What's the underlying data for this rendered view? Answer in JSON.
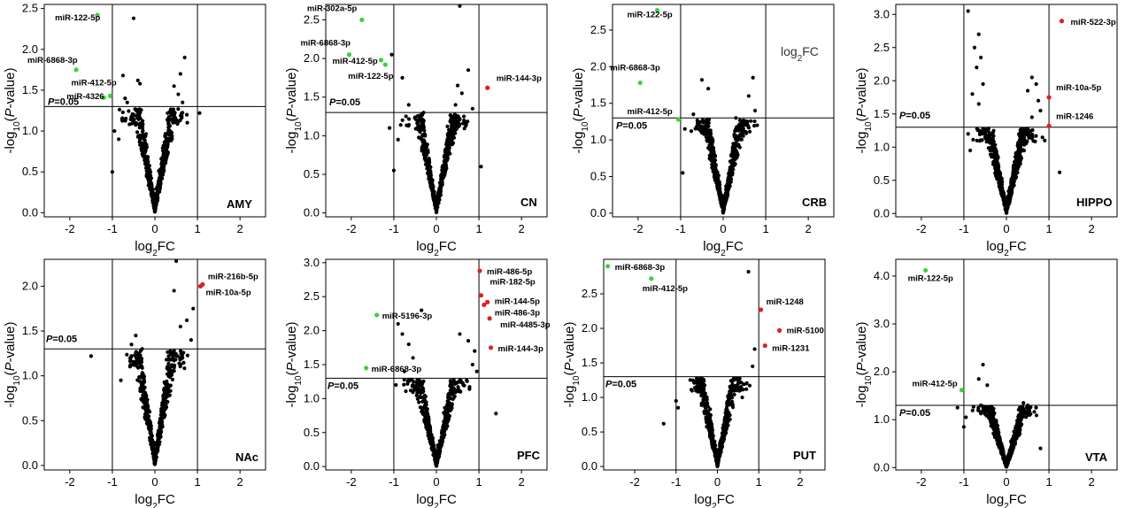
{
  "chart_data": [
    {
      "type": "scatter",
      "region": "AMY",
      "xlabel": "log2FC",
      "ylabel": "-log10(P-value)",
      "threshold_label": "P=0.05",
      "xlim": [
        -2.6,
        2.6
      ],
      "ylim": [
        -0.05,
        2.55
      ],
      "xticks": [
        "-2",
        "-1",
        "0",
        "1",
        "2"
      ],
      "xtick_values": [
        -2,
        -1,
        0,
        1,
        2
      ],
      "yticks": [
        "0.0",
        "0.5",
        "1.0",
        "1.5",
        "2.0",
        "2.5"
      ],
      "ytick_values": [
        0,
        0.5,
        1,
        1.5,
        2,
        2.5
      ],
      "fc_cutoffs": [
        -1,
        1
      ],
      "p_cutoff": 1.3,
      "labeled": [
        {
          "name": "miR-122-5p",
          "x": -1.35,
          "y": 2.42,
          "color": "#3dd13d"
        },
        {
          "name": "miR-6868-3p",
          "x": -1.85,
          "y": 1.75,
          "color": "#3dd13d"
        },
        {
          "name": "miR-412-5p",
          "x": -1.05,
          "y": 1.43,
          "color": "#3dd13d"
        },
        {
          "name": "miR-4326",
          "x": -1.2,
          "y": 1.41,
          "color": "#3dd13d"
        }
      ],
      "outliers": [
        [
          -0.5,
          2.38
        ],
        [
          -0.75,
          1.68
        ],
        [
          -0.4,
          1.62
        ],
        [
          -0.35,
          1.58
        ],
        [
          -0.7,
          1.4
        ],
        [
          -0.65,
          1.35
        ],
        [
          0.45,
          1.55
        ],
        [
          0.6,
          1.7
        ],
        [
          0.7,
          1.9
        ],
        [
          0.55,
          1.45
        ],
        [
          0.65,
          1.35
        ],
        [
          1.05,
          1.22
        ],
        [
          -0.95,
          1.0
        ],
        [
          -1.0,
          0.5
        ],
        [
          -0.85,
          0.9
        ],
        [
          0.75,
          1.2
        ]
      ]
    },
    {
      "type": "scatter",
      "region": "CN",
      "xlabel": "log2FC",
      "ylabel": "-log10(P-value)",
      "threshold_label": "P=0.05",
      "xlim": [
        -2.6,
        2.6
      ],
      "ylim": [
        -0.05,
        2.7
      ],
      "xticks": [
        "-2",
        "-1",
        "0",
        "1",
        "2"
      ],
      "xtick_values": [
        -2,
        -1,
        0,
        1,
        2
      ],
      "yticks": [
        "0.0",
        "0.5",
        "1.0",
        "1.5",
        "2.0",
        "2.5"
      ],
      "ytick_values": [
        0,
        0.5,
        1,
        1.5,
        2,
        2.5
      ],
      "fc_cutoffs": [
        -1,
        1
      ],
      "p_cutoff": 1.3,
      "labeled": [
        {
          "name": "miR-302a-5p",
          "x": -1.75,
          "y": 2.5,
          "color": "#3dd13d"
        },
        {
          "name": "miR-6868-3p",
          "x": -2.05,
          "y": 2.05,
          "color": "#3dd13d"
        },
        {
          "name": "miR-412-5p",
          "x": -1.3,
          "y": 1.98,
          "color": "#3dd13d"
        },
        {
          "name": "miR-122-5p",
          "x": -1.2,
          "y": 1.92,
          "color": "#3dd13d"
        },
        {
          "name": "miR-144-3p",
          "x": 1.2,
          "y": 1.62,
          "color": "#e02020"
        }
      ],
      "outliers": [
        [
          0.55,
          2.68
        ],
        [
          -1.05,
          2.05
        ],
        [
          -0.8,
          1.75
        ],
        [
          -0.65,
          1.4
        ],
        [
          0.5,
          1.65
        ],
        [
          0.6,
          1.55
        ],
        [
          0.45,
          1.4
        ],
        [
          0.75,
          1.85
        ],
        [
          0.85,
          1.35
        ],
        [
          -1.0,
          0.55
        ],
        [
          -1.1,
          1.1
        ],
        [
          -0.9,
          0.95
        ],
        [
          -0.3,
          1.3
        ],
        [
          0.4,
          1.2
        ],
        [
          1.05,
          0.6
        ]
      ]
    },
    {
      "type": "scatter",
      "region": "CRB",
      "xlabel": "log2FC",
      "ylabel": "-log10(P-value)",
      "threshold_label": "P=0.05",
      "annotation": "log2FC",
      "xlim": [
        -2.6,
        2.6
      ],
      "ylim": [
        -0.05,
        2.85
      ],
      "xticks": [
        "-2",
        "-1",
        "0",
        "1",
        "2"
      ],
      "xtick_values": [
        -2,
        -1,
        0,
        1,
        2
      ],
      "yticks": [
        "0.0",
        "0.5",
        "1.0",
        "1.5",
        "2.0",
        "2.5"
      ],
      "ytick_values": [
        0,
        0.5,
        1,
        1.5,
        2,
        2.5
      ],
      "fc_cutoffs": [
        -1,
        1
      ],
      "p_cutoff": 1.3,
      "labeled": [
        {
          "name": "miR-122-5p",
          "x": -1.55,
          "y": 2.77,
          "color": "#3dd13d"
        },
        {
          "name": "miR-6868-3p",
          "x": -1.95,
          "y": 1.78,
          "color": "#3dd13d"
        },
        {
          "name": "miR-412-5p",
          "x": -1.05,
          "y": 1.28,
          "color": "#3dd13d"
        }
      ],
      "outliers": [
        [
          -0.5,
          1.82
        ],
        [
          -0.35,
          1.7
        ],
        [
          0.7,
          1.85
        ],
        [
          0.6,
          1.6
        ],
        [
          0.75,
          1.4
        ],
        [
          -0.7,
          1.35
        ],
        [
          -0.6,
          1.25
        ],
        [
          0.3,
          1.3
        ],
        [
          -0.9,
          1.15
        ],
        [
          -0.95,
          0.55
        ],
        [
          0.45,
          1.15
        ],
        [
          0.8,
          1.2
        ]
      ]
    },
    {
      "type": "scatter",
      "region": "HIPPO",
      "xlabel": "log2FC",
      "ylabel": "-log10(P-value)",
      "threshold_label": "P=0.05",
      "xlim": [
        -2.6,
        2.6
      ],
      "ylim": [
        -0.05,
        3.15
      ],
      "xticks": [
        "-2",
        "-1",
        "0",
        "1",
        "2"
      ],
      "xtick_values": [
        -2,
        -1,
        0,
        1,
        2
      ],
      "yticks": [
        "0.0",
        "0.5",
        "1.0",
        "1.5",
        "2.0",
        "2.5",
        "3.0"
      ],
      "ytick_values": [
        0,
        0.5,
        1,
        1.5,
        2,
        2.5,
        3
      ],
      "fc_cutoffs": [
        -1,
        1
      ],
      "p_cutoff": 1.3,
      "labeled": [
        {
          "name": "miR-522-3p",
          "x": 1.3,
          "y": 2.9,
          "color": "#e02020"
        },
        {
          "name": "miR-10a-5p",
          "x": 1.0,
          "y": 1.75,
          "color": "#e02020"
        },
        {
          "name": "miR-1246",
          "x": 1.0,
          "y": 1.32,
          "color": "#e02020"
        }
      ],
      "outliers": [
        [
          -0.9,
          3.05
        ],
        [
          -0.65,
          2.7
        ],
        [
          -0.75,
          2.5
        ],
        [
          -0.6,
          2.35
        ],
        [
          -0.7,
          2.2
        ],
        [
          -0.55,
          1.95
        ],
        [
          -0.8,
          1.8
        ],
        [
          -0.65,
          1.65
        ],
        [
          0.6,
          2.05
        ],
        [
          0.7,
          1.95
        ],
        [
          0.5,
          1.85
        ],
        [
          0.75,
          1.7
        ],
        [
          0.8,
          1.55
        ],
        [
          0.6,
          1.45
        ],
        [
          -0.9,
          1.2
        ],
        [
          -0.85,
          0.95
        ],
        [
          1.25,
          0.62
        ],
        [
          0.9,
          1.1
        ]
      ]
    },
    {
      "type": "scatter",
      "region": "NAc",
      "xlabel": "log2FC",
      "ylabel": "-log10(P-value)",
      "threshold_label": "P=0.05",
      "xlim": [
        -2.6,
        2.6
      ],
      "ylim": [
        -0.05,
        2.3
      ],
      "xticks": [
        "-2",
        "-1",
        "0",
        "1",
        "2"
      ],
      "xtick_values": [
        -2,
        -1,
        0,
        1,
        2
      ],
      "yticks": [
        "0.0",
        "0.5",
        "1.0",
        "1.5",
        "2.0"
      ],
      "ytick_values": [
        0,
        0.5,
        1,
        1.5,
        2
      ],
      "fc_cutoffs": [
        -1,
        1
      ],
      "p_cutoff": 1.3,
      "labeled": [
        {
          "name": "miR-216b-5p",
          "x": 1.12,
          "y": 2.02,
          "color": "#e02020"
        },
        {
          "name": "miR-10a-5p",
          "x": 1.07,
          "y": 2.0,
          "color": "#e02020"
        }
      ],
      "outliers": [
        [
          0.5,
          2.28
        ],
        [
          0.45,
          1.95
        ],
        [
          0.9,
          1.75
        ],
        [
          0.75,
          1.62
        ],
        [
          0.6,
          1.55
        ],
        [
          0.85,
          1.4
        ],
        [
          -0.45,
          1.45
        ],
        [
          -0.55,
          1.35
        ],
        [
          -1.5,
          1.22
        ],
        [
          -0.8,
          0.95
        ],
        [
          0.65,
          1.2
        ],
        [
          -0.3,
          1.3
        ]
      ]
    },
    {
      "type": "scatter",
      "region": "PFC",
      "xlabel": "log2FC",
      "ylabel": "-log10(P-value)",
      "threshold_label": "P=0.05",
      "xlim": [
        -2.6,
        2.6
      ],
      "ylim": [
        -0.05,
        3.05
      ],
      "xticks": [
        "-2",
        "-1",
        "0",
        "1",
        "2"
      ],
      "xtick_values": [
        -2,
        -1,
        0,
        1,
        2
      ],
      "yticks": [
        "0.0",
        "0.5",
        "1.0",
        "1.5",
        "2.0",
        "2.5",
        "3.0"
      ],
      "ytick_values": [
        0,
        0.5,
        1,
        1.5,
        2,
        2.5,
        3
      ],
      "fc_cutoffs": [
        -1,
        1
      ],
      "p_cutoff": 1.3,
      "labeled": [
        {
          "name": "miR-486-5p",
          "x": 1.02,
          "y": 2.88,
          "color": "#e02020"
        },
        {
          "name": "miR-182-5p",
          "x": 1.05,
          "y": 2.52,
          "color": "#e02020"
        },
        {
          "name": "miR-144-5p",
          "x": 1.2,
          "y": 2.42,
          "color": "#e02020"
        },
        {
          "name": "miR-486-3p",
          "x": 1.12,
          "y": 2.38,
          "color": "#e02020"
        },
        {
          "name": "miR-4485-3p",
          "x": 1.25,
          "y": 2.18,
          "color": "#e02020"
        },
        {
          "name": "miR-144-3p",
          "x": 1.28,
          "y": 1.75,
          "color": "#e02020"
        },
        {
          "name": "miR-5196-3p",
          "x": -1.4,
          "y": 2.23,
          "color": "#3dd13d"
        },
        {
          "name": "miR-6868-3p",
          "x": -1.65,
          "y": 1.45,
          "color": "#3dd13d"
        }
      ],
      "outliers": [
        [
          -0.35,
          2.3
        ],
        [
          -0.9,
          2.1
        ],
        [
          -0.8,
          1.95
        ],
        [
          -0.65,
          1.8
        ],
        [
          -0.55,
          1.6
        ],
        [
          0.55,
          1.95
        ],
        [
          0.75,
          1.85
        ],
        [
          0.9,
          1.7
        ],
        [
          0.85,
          1.5
        ],
        [
          0.95,
          1.4
        ],
        [
          -0.95,
          1.2
        ],
        [
          1.4,
          0.78
        ],
        [
          -0.75,
          1.4
        ]
      ]
    },
    {
      "type": "scatter",
      "region": "PUT",
      "xlabel": "log2FC",
      "ylabel": "-log10(P-value)",
      "threshold_label": "P=0.05",
      "xlim": [
        -2.75,
        2.6
      ],
      "ylim": [
        -0.05,
        3.0
      ],
      "xticks": [
        "-2",
        "-1",
        "0",
        "1",
        "2"
      ],
      "xtick_values": [
        -2,
        -1,
        0,
        1,
        2
      ],
      "yticks": [
        "0.0",
        "0.5",
        "1.0",
        "1.5",
        "2.0",
        "2.5"
      ],
      "ytick_values": [
        0,
        0.5,
        1,
        1.5,
        2,
        2.5
      ],
      "fc_cutoffs": [
        -1,
        1
      ],
      "p_cutoff": 1.3,
      "labeled": [
        {
          "name": "miR-6868-3p",
          "x": -2.65,
          "y": 2.9,
          "color": "#3dd13d"
        },
        {
          "name": "miR-412-5p",
          "x": -1.6,
          "y": 2.72,
          "color": "#3dd13d"
        },
        {
          "name": "miR-1248",
          "x": 1.05,
          "y": 2.27,
          "color": "#e02020"
        },
        {
          "name": "miR-5100",
          "x": 1.5,
          "y": 1.97,
          "color": "#e02020"
        },
        {
          "name": "miR-1231",
          "x": 1.15,
          "y": 1.75,
          "color": "#e02020"
        }
      ],
      "outliers": [
        [
          0.75,
          2.82
        ],
        [
          0.9,
          1.7
        ],
        [
          0.85,
          1.45
        ],
        [
          0.7,
          1.2
        ],
        [
          -0.5,
          1.15
        ],
        [
          -1.0,
          0.95
        ],
        [
          -0.95,
          0.85
        ],
        [
          0.6,
          1.0
        ],
        [
          -1.3,
          0.62
        ]
      ]
    },
    {
      "type": "scatter",
      "region": "VTA",
      "xlabel": "log2FC",
      "ylabel": "-log10(P-value)",
      "threshold_label": "P=0.05",
      "xlim": [
        -2.6,
        2.6
      ],
      "ylim": [
        -0.05,
        4.35
      ],
      "xticks": [
        "-2",
        "-1",
        "0",
        "1",
        "2"
      ],
      "xtick_values": [
        -2,
        -1,
        0,
        1,
        2
      ],
      "yticks": [
        "0.0",
        "1.0",
        "2.0",
        "3.0",
        "4.0"
      ],
      "ytick_values": [
        0,
        1,
        2,
        3,
        4
      ],
      "fc_cutoffs": [
        -1,
        1
      ],
      "p_cutoff": 1.3,
      "labeled": [
        {
          "name": "miR-122-5p",
          "x": -1.9,
          "y": 4.12,
          "color": "#3dd13d"
        },
        {
          "name": "miR-412-5p",
          "x": -1.05,
          "y": 1.62,
          "color": "#3dd13d"
        }
      ],
      "outliers": [
        [
          -0.55,
          2.15
        ],
        [
          -0.65,
          1.85
        ],
        [
          -0.45,
          1.72
        ],
        [
          -1.15,
          1.25
        ],
        [
          -0.95,
          1.05
        ],
        [
          -1.0,
          0.85
        ],
        [
          0.4,
          1.35
        ],
        [
          0.5,
          1.3
        ],
        [
          0.55,
          1.1
        ],
        [
          0.8,
          0.4
        ],
        [
          -0.6,
          1.3
        ]
      ]
    }
  ]
}
